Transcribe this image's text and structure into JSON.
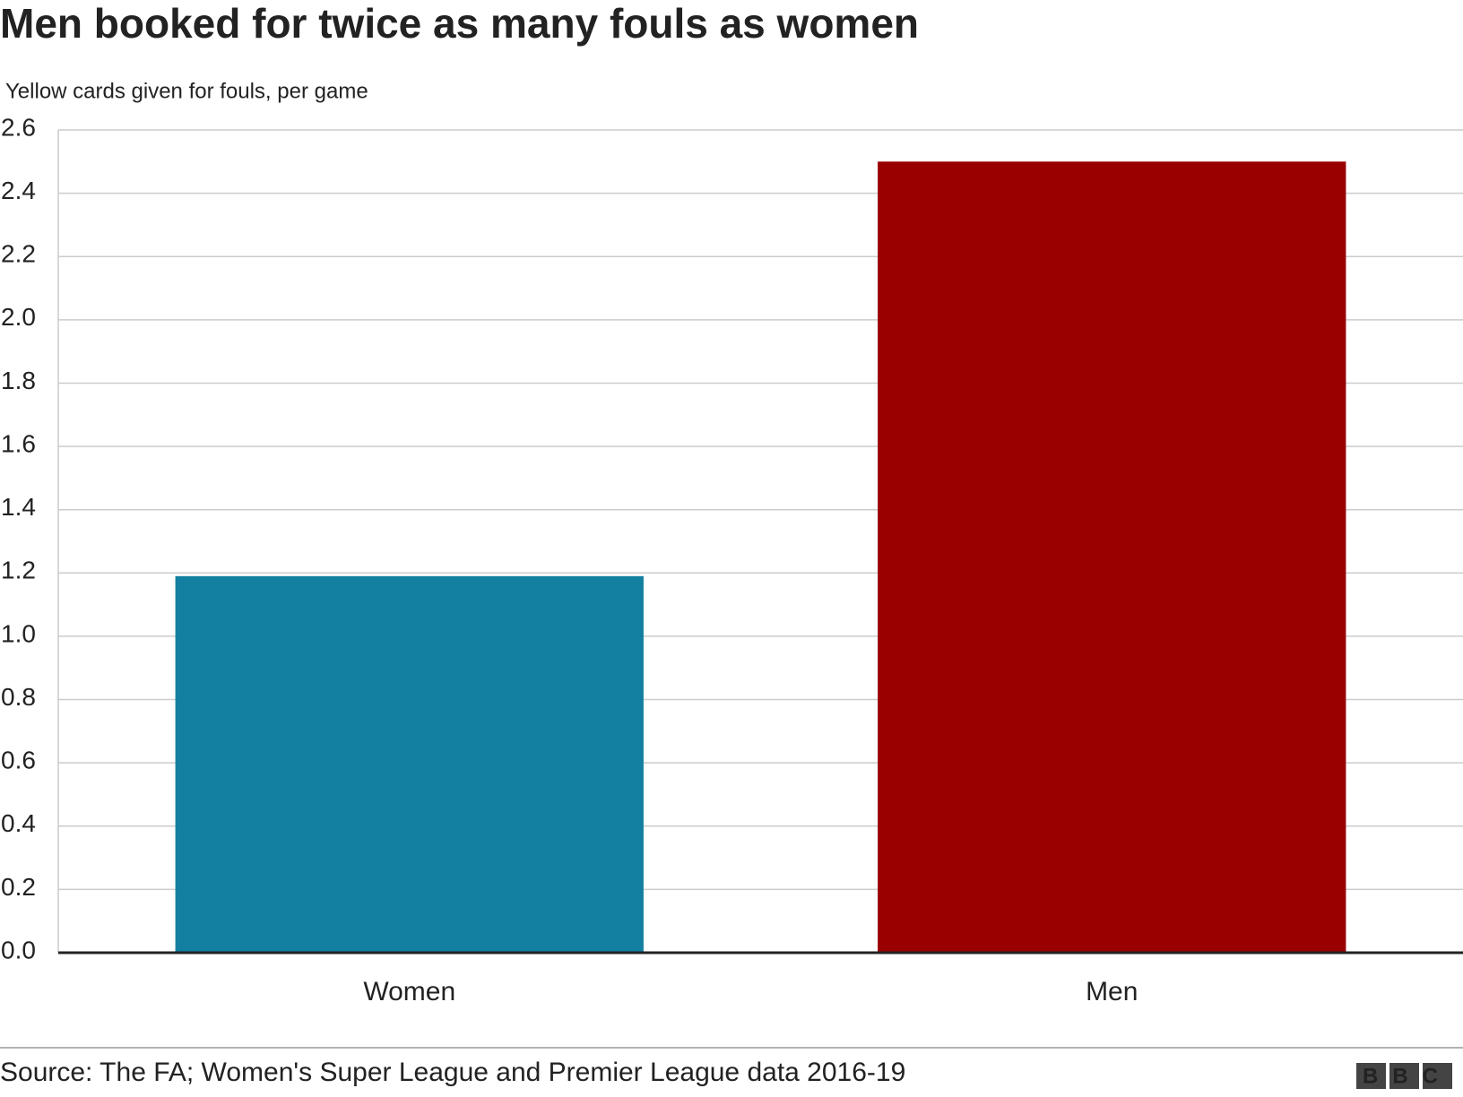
{
  "chart_data": {
    "type": "bar",
    "title": "Men booked for twice as many fouls as women",
    "subtitle": "Yellow cards given for fouls, per game",
    "categories": [
      "Women",
      "Men"
    ],
    "values": [
      1.19,
      2.5
    ],
    "colors": [
      "#1380a1",
      "#990000"
    ],
    "ylim": [
      0,
      2.6
    ],
    "yticks": [
      {
        "value": 0,
        "label": "0.0"
      },
      0.2,
      0.4,
      0.6,
      0.8,
      {
        "value": 1,
        "label": "1.0"
      },
      1.2,
      1.4,
      1.6,
      1.8,
      {
        "value": 2,
        "label": "2.0"
      },
      2.2,
      2.4,
      2.6
    ],
    "grid": true,
    "source": "Source: The FA; Women's Super League and Premier League data 2016-19",
    "logo": "BBC"
  }
}
